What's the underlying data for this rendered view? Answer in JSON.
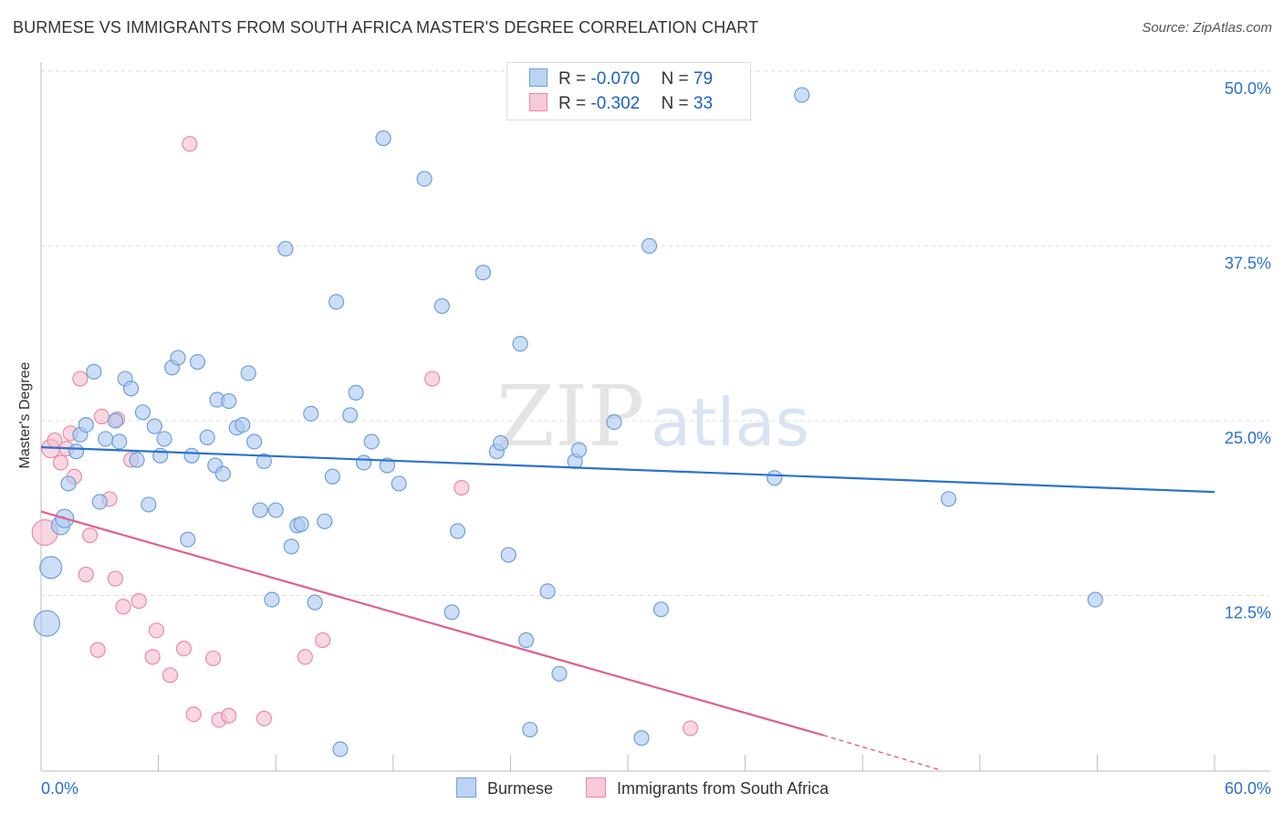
{
  "title": "BURMESE VS IMMIGRANTS FROM SOUTH AFRICA MASTER'S DEGREE CORRELATION CHART",
  "source": "Source: ZipAtlas.com",
  "watermark": {
    "zip": "ZIP",
    "atlas": "atlas"
  },
  "legend": {
    "burmese": {
      "r_label": "R = ",
      "r_value": "-0.070",
      "n_label": "N = ",
      "n_value": "79"
    },
    "south_africa": {
      "r_label": "R = ",
      "r_value": "-0.302",
      "n_label": "N = ",
      "n_value": "33"
    }
  },
  "bottom_legend": {
    "burmese": "Burmese",
    "south_africa": "Immigrants from South Africa"
  },
  "colors": {
    "blue_fill": "#aac8f0",
    "blue_stroke": "#6f9fd8",
    "blue_line": "#2a72d0",
    "pink_fill": "#f5bccd",
    "pink_stroke": "#e98aa6",
    "pink_line": "#e0608a",
    "axis_text": "#2a6fd0",
    "grid": "#dddddd"
  },
  "chart_data": {
    "type": "scatter",
    "title": "BURMESE VS IMMIGRANTS FROM SOUTH AFRICA MASTER'S DEGREE CORRELATION CHART",
    "xlabel": "",
    "ylabel": "Master's Degree",
    "xlim": [
      0,
      60
    ],
    "ylim": [
      0,
      50
    ],
    "x_tick_labels": [
      "0.0%",
      "60.0%"
    ],
    "y_ticks": [
      12.5,
      25.0,
      37.5,
      50.0
    ],
    "y_tick_labels": [
      "12.5%",
      "25.0%",
      "37.5%",
      "50.0%"
    ],
    "series": [
      {
        "name": "Burmese",
        "r": -0.07,
        "n": 79,
        "trend": {
          "x": [
            0,
            60
          ],
          "y": [
            23.1,
            19.9
          ]
        },
        "points": [
          [
            0.3,
            10.5,
            14
          ],
          [
            0.5,
            14.5,
            12
          ],
          [
            1.0,
            17.5,
            10
          ],
          [
            1.2,
            18.0,
            10
          ],
          [
            1.4,
            20.5,
            8
          ],
          [
            1.8,
            22.8,
            8
          ],
          [
            2.0,
            24.0,
            8
          ],
          [
            2.3,
            24.7,
            8
          ],
          [
            2.7,
            28.5,
            8
          ],
          [
            3.0,
            19.2,
            8
          ],
          [
            3.3,
            23.7,
            8
          ],
          [
            3.8,
            25.0,
            8
          ],
          [
            4.0,
            23.5,
            8
          ],
          [
            4.3,
            28.0,
            8
          ],
          [
            4.6,
            27.3,
            8
          ],
          [
            4.9,
            22.2,
            8
          ],
          [
            5.2,
            25.6,
            8
          ],
          [
            5.5,
            19.0,
            8
          ],
          [
            5.8,
            24.6,
            8
          ],
          [
            6.1,
            22.5,
            8
          ],
          [
            6.3,
            23.7,
            8
          ],
          [
            6.7,
            28.8,
            8
          ],
          [
            7.0,
            29.5,
            8
          ],
          [
            7.5,
            16.5,
            8
          ],
          [
            7.7,
            22.5,
            8
          ],
          [
            8.0,
            29.2,
            8
          ],
          [
            8.5,
            23.8,
            8
          ],
          [
            8.9,
            21.8,
            8
          ],
          [
            9.0,
            26.5,
            8
          ],
          [
            9.3,
            21.2,
            8
          ],
          [
            9.6,
            26.4,
            8
          ],
          [
            10.0,
            24.5,
            8
          ],
          [
            10.3,
            24.7,
            8
          ],
          [
            10.6,
            28.4,
            8
          ],
          [
            10.9,
            23.5,
            8
          ],
          [
            11.2,
            18.6,
            8
          ],
          [
            11.4,
            22.1,
            8
          ],
          [
            11.8,
            12.2,
            8
          ],
          [
            12.0,
            18.6,
            8
          ],
          [
            12.5,
            37.3,
            8
          ],
          [
            12.8,
            16.0,
            8
          ],
          [
            13.1,
            17.5,
            8
          ],
          [
            13.3,
            17.6,
            8
          ],
          [
            13.8,
            25.5,
            8
          ],
          [
            14.0,
            12.0,
            8
          ],
          [
            14.5,
            17.8,
            8
          ],
          [
            14.9,
            21.0,
            8
          ],
          [
            15.1,
            33.5,
            8
          ],
          [
            15.3,
            1.5,
            8
          ],
          [
            15.8,
            25.4,
            8
          ],
          [
            16.1,
            27.0,
            8
          ],
          [
            16.5,
            22.0,
            8
          ],
          [
            16.9,
            23.5,
            8
          ],
          [
            17.5,
            45.2,
            8
          ],
          [
            17.7,
            21.8,
            8
          ],
          [
            18.3,
            20.5,
            8
          ],
          [
            19.6,
            42.3,
            8
          ],
          [
            20.5,
            33.2,
            8
          ],
          [
            21.0,
            11.3,
            8
          ],
          [
            21.3,
            17.1,
            8
          ],
          [
            22.6,
            35.6,
            8
          ],
          [
            23.3,
            22.8,
            8
          ],
          [
            23.5,
            23.4,
            8
          ],
          [
            23.9,
            15.4,
            8
          ],
          [
            24.5,
            30.5,
            8
          ],
          [
            24.8,
            9.3,
            8
          ],
          [
            25.0,
            2.9,
            8
          ],
          [
            25.9,
            12.8,
            8
          ],
          [
            26.5,
            6.9,
            8
          ],
          [
            27.3,
            22.1,
            8
          ],
          [
            27.5,
            22.9,
            8
          ],
          [
            29.3,
            24.9,
            8
          ],
          [
            30.7,
            2.3,
            8
          ],
          [
            31.1,
            37.5,
            8
          ],
          [
            31.7,
            11.5,
            8
          ],
          [
            37.5,
            20.9,
            8
          ],
          [
            38.9,
            48.3,
            8
          ],
          [
            46.4,
            19.4,
            8
          ],
          [
            53.9,
            12.2,
            8
          ]
        ]
      },
      {
        "name": "Immigrants from South Africa",
        "r": -0.302,
        "n": 33,
        "trend": {
          "x": [
            0,
            40
          ],
          "y": [
            18.5,
            2.5
          ]
        },
        "trend_dashed": {
          "x": [
            40,
            46
          ],
          "y": [
            2.5,
            0.0
          ]
        },
        "points": [
          [
            0.2,
            17.0,
            14
          ],
          [
            0.5,
            23.0,
            10
          ],
          [
            0.7,
            23.6,
            8
          ],
          [
            1.0,
            22.0,
            8
          ],
          [
            1.3,
            23.0,
            8
          ],
          [
            1.5,
            24.1,
            8
          ],
          [
            1.7,
            21.0,
            8
          ],
          [
            2.0,
            28.0,
            8
          ],
          [
            2.3,
            14.0,
            8
          ],
          [
            2.5,
            16.8,
            8
          ],
          [
            2.9,
            8.6,
            8
          ],
          [
            3.1,
            25.3,
            8
          ],
          [
            3.5,
            19.4,
            8
          ],
          [
            3.8,
            13.7,
            8
          ],
          [
            3.9,
            25.1,
            8
          ],
          [
            4.2,
            11.7,
            8
          ],
          [
            4.6,
            22.2,
            8
          ],
          [
            5.0,
            12.1,
            8
          ],
          [
            5.7,
            8.1,
            8
          ],
          [
            5.9,
            10.0,
            8
          ],
          [
            6.6,
            6.8,
            8
          ],
          [
            7.3,
            8.7,
            8
          ],
          [
            7.6,
            44.8,
            8
          ],
          [
            7.8,
            4.0,
            8
          ],
          [
            8.8,
            8.0,
            8
          ],
          [
            9.1,
            3.6,
            8
          ],
          [
            9.6,
            3.9,
            8
          ],
          [
            11.4,
            3.7,
            8
          ],
          [
            13.5,
            8.1,
            8
          ],
          [
            14.4,
            9.3,
            8
          ],
          [
            20.0,
            28.0,
            8
          ],
          [
            21.5,
            20.2,
            8
          ],
          [
            33.2,
            3.0,
            8
          ]
        ]
      }
    ]
  }
}
